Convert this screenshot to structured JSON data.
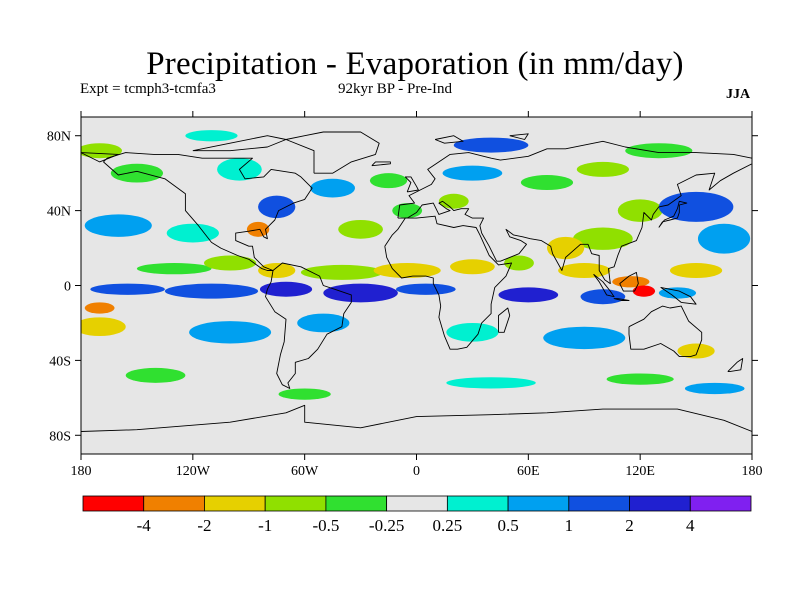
{
  "title": "Precipitation - Evaporation (in mm/day)",
  "experiment": "Expt = tcmph3-tcmfa3",
  "period": "92kyr BP - Pre-Ind",
  "season": "JJA",
  "axes": {
    "y_ticks": [
      {
        "value": 80,
        "label": "80N"
      },
      {
        "value": 40,
        "label": "40N"
      },
      {
        "value": 0,
        "label": "0"
      },
      {
        "value": -40,
        "label": "40S"
      },
      {
        "value": -80,
        "label": "80S"
      }
    ],
    "x_ticks": [
      {
        "value": -180,
        "label": "180"
      },
      {
        "value": -120,
        "label": "120W"
      },
      {
        "value": -60,
        "label": "60W"
      },
      {
        "value": 0,
        "label": "0"
      },
      {
        "value": 60,
        "label": "60E"
      },
      {
        "value": 120,
        "label": "120E"
      },
      {
        "value": 180,
        "label": "180"
      }
    ],
    "lon_range": [
      -180,
      180
    ],
    "lat_range": [
      -90,
      90
    ]
  },
  "colorbar": {
    "colors": [
      "#ff0000",
      "#f08000",
      "#e6d000",
      "#90e000",
      "#30e030",
      "#e6e6e6",
      "#00f0d0",
      "#00a0f0",
      "#1050e0",
      "#2020d0",
      "#8020f0"
    ],
    "labels": [
      "-4",
      "-2",
      "-1",
      "-0.5",
      "-0.25",
      "0.25",
      "0.5",
      "1",
      "2",
      "4"
    ]
  },
  "map_colors": {
    "background": "#e6e6e6",
    "coast": "#000000"
  }
}
